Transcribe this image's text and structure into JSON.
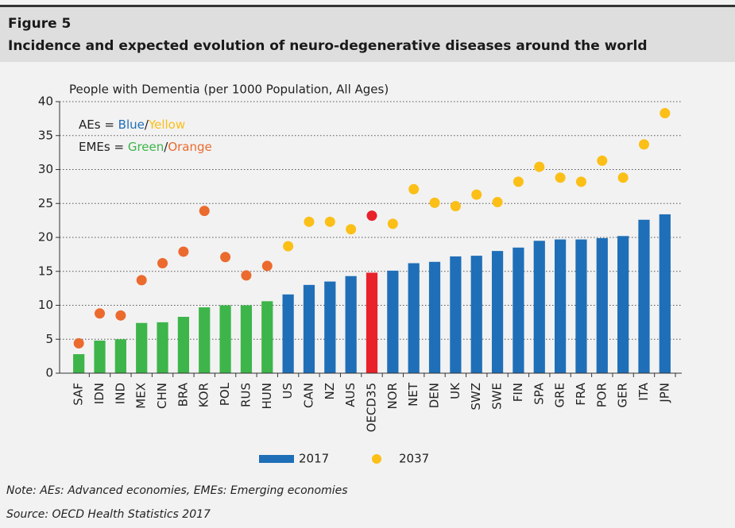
{
  "chart_data": {
    "type": "bar_dot",
    "figure_label": "Figure 5",
    "title": "Incidence and expected evolution of neuro-degenerative diseases around the world",
    "y_label": "People with Dementia (per 1000 Population, All Ages)",
    "annotations": [
      [
        {
          "text": "AEs = ",
          "color": "#222222"
        },
        {
          "text": "Blue",
          "color": "#1f6fb8"
        },
        {
          "text": "/",
          "color": "#222222"
        },
        {
          "text": "Yellow",
          "color": "#fbbf17"
        }
      ],
      [
        {
          "text": "EMEs = ",
          "color": "#222222"
        },
        {
          "text": "Green",
          "color": "#3db54a"
        },
        {
          "text": "/",
          "color": "#222222"
        },
        {
          "text": "Orange",
          "color": "#eb6a2e"
        }
      ]
    ],
    "categories": [
      "SAF",
      "IDN",
      "IND",
      "MEX",
      "CHN",
      "BRA",
      "KOR",
      "POL",
      "RUS",
      "HUN",
      "US",
      "CAN",
      "NZ",
      "AUS",
      "OECD35",
      "NOR",
      "NET",
      "DEN",
      "UK",
      "SWZ",
      "SWE",
      "FIN",
      "SPA",
      "GRE",
      "FRA",
      "POR",
      "GER",
      "ITA",
      "JPN"
    ],
    "series": [
      {
        "name": "2017",
        "kind": "bar",
        "color": "#1f6fb8",
        "colors": [
          "#3db54a",
          "#3db54a",
          "#3db54a",
          "#3db54a",
          "#3db54a",
          "#3db54a",
          "#3db54a",
          "#3db54a",
          "#3db54a",
          "#3db54a",
          "#1f6fb8",
          "#1f6fb8",
          "#1f6fb8",
          "#1f6fb8",
          "#e8212a",
          "#1f6fb8",
          "#1f6fb8",
          "#1f6fb8",
          "#1f6fb8",
          "#1f6fb8",
          "#1f6fb8",
          "#1f6fb8",
          "#1f6fb8",
          "#1f6fb8",
          "#1f6fb8",
          "#1f6fb8",
          "#1f6fb8",
          "#1f6fb8",
          "#1f6fb8"
        ],
        "values": [
          2.8,
          4.8,
          5.0,
          7.4,
          7.5,
          8.3,
          9.7,
          10.0,
          10.0,
          10.6,
          11.6,
          13.0,
          13.5,
          14.3,
          14.8,
          15.1,
          16.2,
          16.4,
          17.2,
          17.3,
          18.0,
          18.5,
          19.5,
          19.7,
          19.7,
          19.9,
          20.2,
          22.6,
          23.4
        ]
      },
      {
        "name": "2037",
        "kind": "dot",
        "color": "#fbbf17",
        "colors": [
          "#eb6a2e",
          "#eb6a2e",
          "#eb6a2e",
          "#eb6a2e",
          "#eb6a2e",
          "#eb6a2e",
          "#eb6a2e",
          "#eb6a2e",
          "#eb6a2e",
          "#eb6a2e",
          "#fbbf17",
          "#fbbf17",
          "#fbbf17",
          "#fbbf17",
          "#e8212a",
          "#fbbf17",
          "#fbbf17",
          "#fbbf17",
          "#fbbf17",
          "#fbbf17",
          "#fbbf17",
          "#fbbf17",
          "#fbbf17",
          "#fbbf17",
          "#fbbf17",
          "#fbbf17",
          "#fbbf17",
          "#fbbf17",
          "#fbbf17"
        ],
        "values": [
          4.4,
          8.8,
          8.5,
          13.7,
          16.2,
          17.9,
          23.9,
          17.1,
          14.4,
          15.8,
          18.7,
          22.3,
          22.3,
          21.2,
          23.2,
          22.0,
          27.1,
          25.1,
          24.6,
          26.3,
          25.2,
          28.2,
          30.4,
          28.8,
          28.2,
          31.3,
          28.8,
          33.7,
          38.3
        ]
      }
    ],
    "ylim": [
      0,
      40
    ],
    "yticks": [
      0,
      5,
      10,
      15,
      20,
      25,
      30,
      35,
      40
    ],
    "grid": true,
    "notes": [
      "Note: AEs: Advanced economies, EMEs: Emerging economies",
      "Source: OECD Health Statistics 2017"
    ]
  }
}
